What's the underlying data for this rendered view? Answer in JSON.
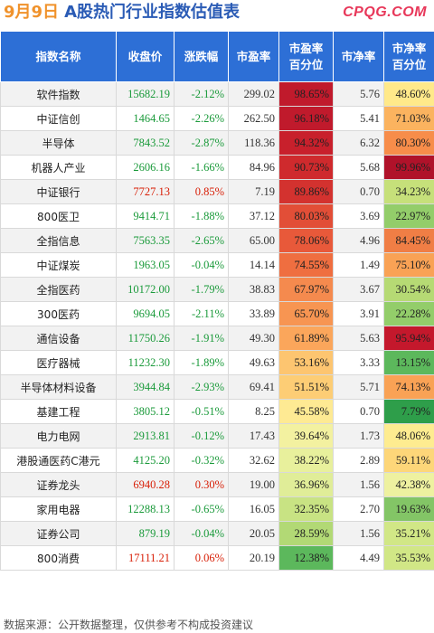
{
  "header": {
    "date": "9月9日",
    "title": "A股热门行业指数估值表",
    "brand": "CPQG.COM"
  },
  "columns": [
    "指数名称",
    "收盘价",
    "涨跌幅",
    "市盈率",
    "市盈率\n百分位",
    "市净率",
    "市净率\n百分位"
  ],
  "rows": [
    {
      "name": "软件指数",
      "close": "15682.19",
      "change": "-2.12%",
      "pe": "299.02",
      "pe_pct": "98.65%",
      "pb": "5.76",
      "pb_pct": "48.60%",
      "pe_color": "#c01a2c",
      "pb_color": "#ffe98a"
    },
    {
      "name": "中证信创",
      "close": "1464.65",
      "change": "-2.26%",
      "pe": "262.50",
      "pe_pct": "96.18%",
      "pb": "5.41",
      "pb_pct": "71.03%",
      "pe_color": "#c01a2c",
      "pb_color": "#fbb35f"
    },
    {
      "name": "半导体",
      "close": "7843.52",
      "change": "-2.87%",
      "pe": "118.36",
      "pe_pct": "94.32%",
      "pb": "6.32",
      "pb_pct": "80.30%",
      "pe_color": "#c8202c",
      "pb_color": "#f78d4a"
    },
    {
      "name": "机器人产业",
      "close": "2606.16",
      "change": "-1.66%",
      "pe": "84.96",
      "pe_pct": "90.73%",
      "pb": "5.68",
      "pb_pct": "99.96%",
      "pe_color": "#cf2a2d",
      "pb_color": "#b0122a"
    },
    {
      "name": "中证银行",
      "close": "7727.13",
      "change": "0.85%",
      "pe": "7.19",
      "pe_pct": "89.86%",
      "pb": "0.70",
      "pb_pct": "34.23%",
      "pe_color": "#d3322f",
      "pb_color": "#c6e07a"
    },
    {
      "name": "800医卫",
      "close": "9414.71",
      "change": "-1.88%",
      "pe": "37.12",
      "pe_pct": "80.03%",
      "pb": "3.69",
      "pb_pct": "22.97%",
      "pe_color": "#e24e37",
      "pb_color": "#93cd6a"
    },
    {
      "name": "全指信息",
      "close": "7563.35",
      "change": "-2.65%",
      "pe": "65.00",
      "pe_pct": "78.06%",
      "pb": "4.96",
      "pb_pct": "84.45%",
      "pe_color": "#e8593a",
      "pb_color": "#f07e45"
    },
    {
      "name": "中证煤炭",
      "close": "1963.05",
      "change": "-0.04%",
      "pe": "14.14",
      "pe_pct": "74.55%",
      "pb": "1.49",
      "pb_pct": "75.10%",
      "pe_color": "#ef6e40",
      "pb_color": "#f9a255"
    },
    {
      "name": "全指医药",
      "close": "10172.00",
      "change": "-1.79%",
      "pe": "38.83",
      "pe_pct": "67.97%",
      "pb": "3.67",
      "pb_pct": "30.54%",
      "pe_color": "#f58a4e",
      "pb_color": "#b6da74"
    },
    {
      "name": "300医药",
      "close": "9694.05",
      "change": "-2.11%",
      "pe": "33.89",
      "pe_pct": "65.70%",
      "pb": "3.91",
      "pb_pct": "22.28%",
      "pe_color": "#f79552",
      "pb_color": "#93cd6a"
    },
    {
      "name": "通信设备",
      "close": "11750.26",
      "change": "-1.91%",
      "pe": "49.30",
      "pe_pct": "61.89%",
      "pb": "5.63",
      "pb_pct": "95.94%",
      "pe_color": "#fba65b",
      "pb_color": "#c4182c"
    },
    {
      "name": "医疗器械",
      "close": "11232.30",
      "change": "-1.89%",
      "pe": "49.63",
      "pe_pct": "53.16%",
      "pb": "3.33",
      "pb_pct": "13.15%",
      "pe_color": "#fdc570",
      "pb_color": "#5cb85c"
    },
    {
      "name": "半导体材料设备",
      "close": "3944.84",
      "change": "-2.93%",
      "pe": "69.41",
      "pe_pct": "51.51%",
      "pb": "5.71",
      "pb_pct": "74.13%",
      "pe_color": "#fdcd75",
      "pb_color": "#f9a255"
    },
    {
      "name": "基建工程",
      "close": "3805.12",
      "change": "-0.51%",
      "pe": "8.25",
      "pe_pct": "45.58%",
      "pb": "0.70",
      "pb_pct": "7.79%",
      "pe_color": "#feea93",
      "pb_color": "#2e9e4a"
    },
    {
      "name": "电力电网",
      "close": "2913.81",
      "change": "-0.12%",
      "pe": "17.43",
      "pe_pct": "39.64%",
      "pb": "1.73",
      "pb_pct": "48.06%",
      "pe_color": "#f3f1a0",
      "pb_color": "#feec90"
    },
    {
      "name": "港股通医药C港元",
      "close": "4125.20",
      "change": "-0.32%",
      "pe": "32.62",
      "pe_pct": "38.22%",
      "pb": "2.89",
      "pb_pct": "59.11%",
      "pe_color": "#e8f09c",
      "pb_color": "#fdd679"
    },
    {
      "name": "证券龙头",
      "close": "6940.28",
      "change": "0.30%",
      "pe": "19.00",
      "pe_pct": "36.96%",
      "pb": "1.56",
      "pb_pct": "42.38%",
      "pe_color": "#e0ed98",
      "pb_color": "#eef1a0"
    },
    {
      "name": "家用电器",
      "close": "12288.13",
      "change": "-0.65%",
      "pe": "16.05",
      "pe_pct": "32.35%",
      "pb": "2.70",
      "pb_pct": "19.63%",
      "pe_color": "#c8e383",
      "pb_color": "#83c566"
    },
    {
      "name": "证券公司",
      "close": "879.19",
      "change": "-0.04%",
      "pe": "20.05",
      "pe_pct": "28.59%",
      "pb": "1.56",
      "pb_pct": "35.21%",
      "pe_color": "#b2d975",
      "pb_color": "#d1e786"
    },
    {
      "name": "800消费",
      "close": "17111.21",
      "change": "0.06%",
      "pe": "20.19",
      "pe_pct": "12.38%",
      "pb": "4.49",
      "pb_pct": "35.53%",
      "pe_color": "#5cb85c",
      "pb_color": "#d1e786"
    }
  ],
  "footer": "数据来源：公开数据整理，仅供参考不构成投资建议"
}
